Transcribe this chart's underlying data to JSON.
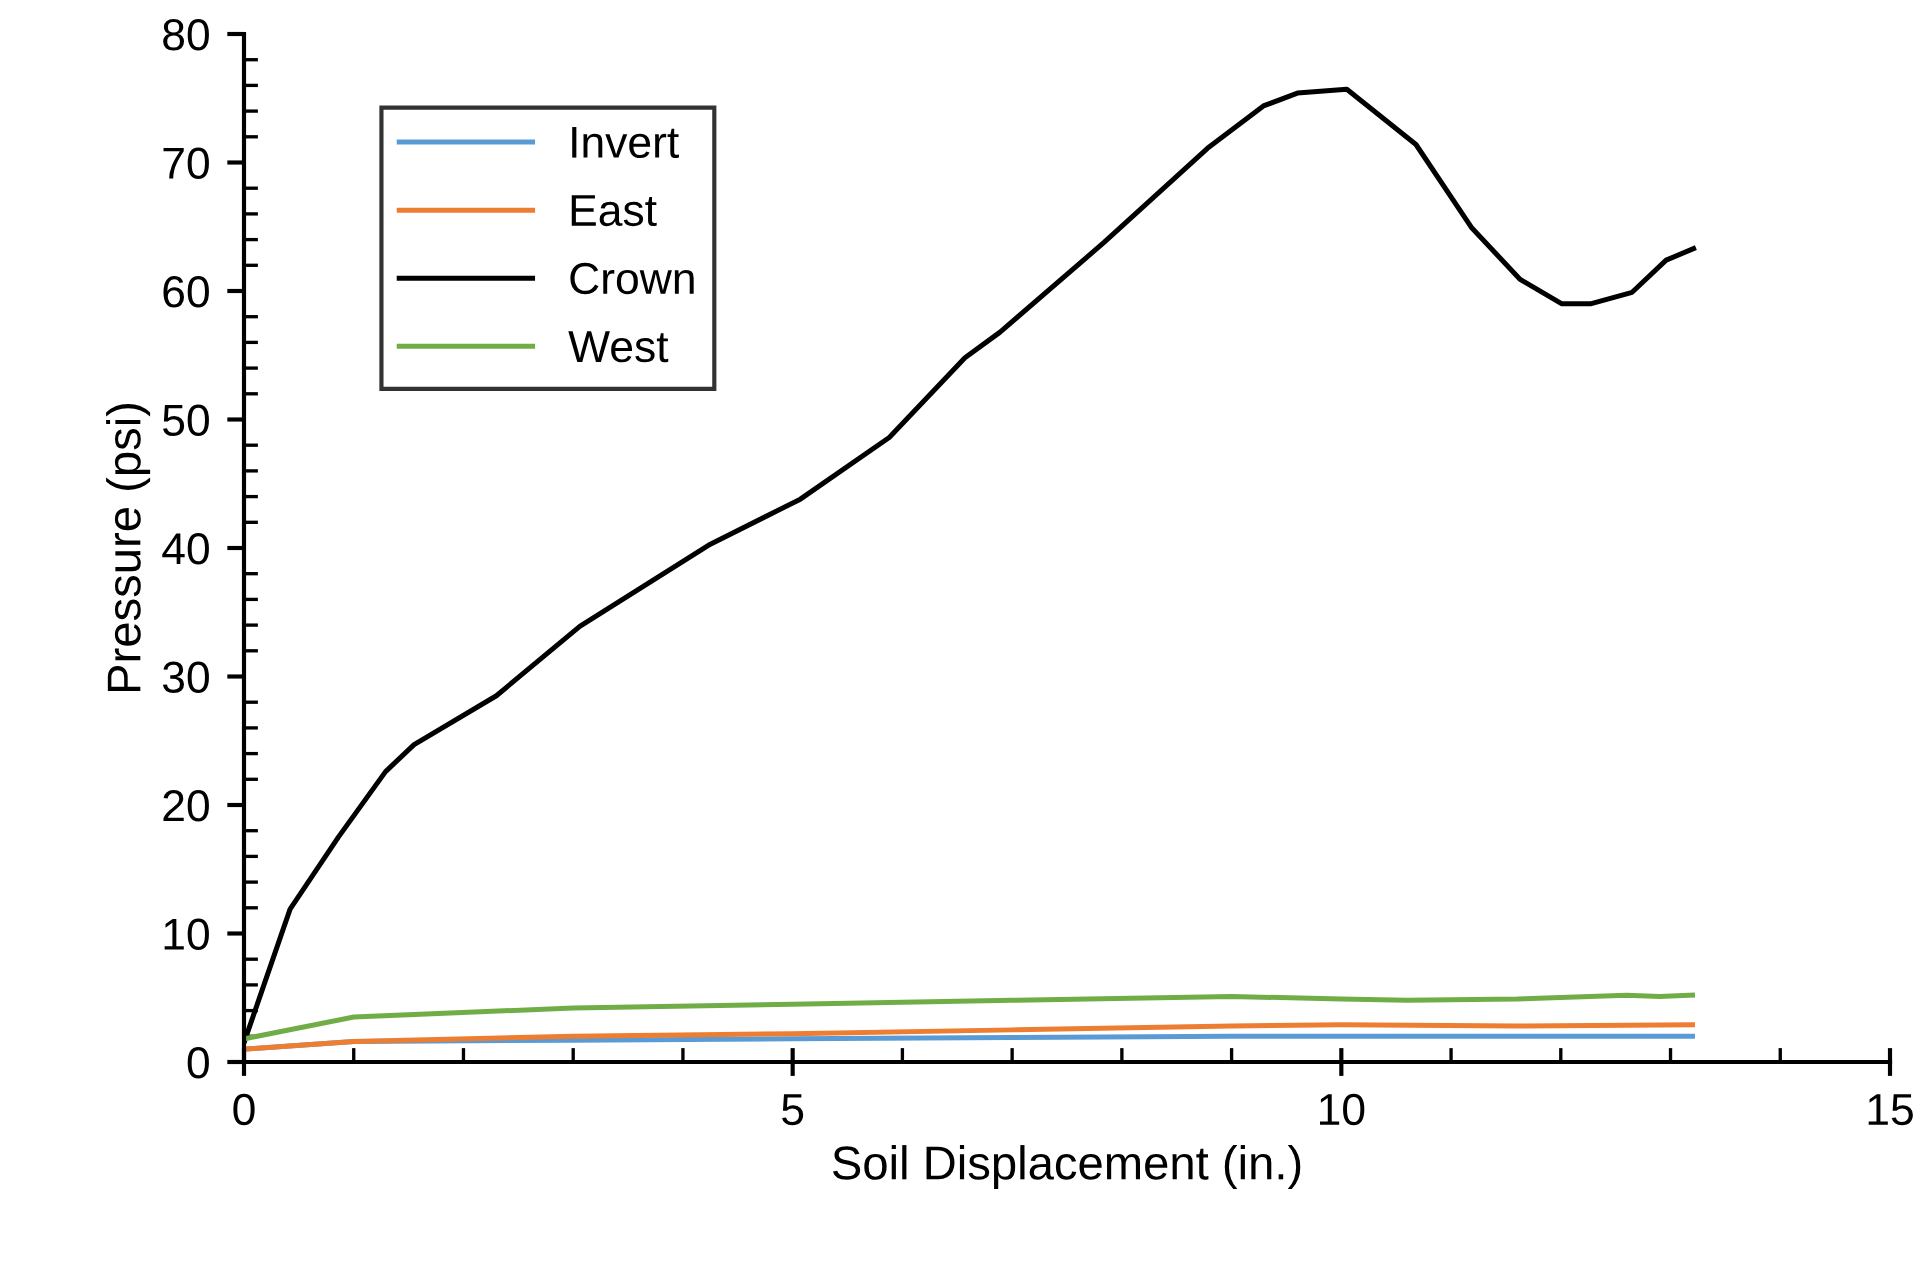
{
  "chart_data": {
    "type": "line",
    "xlabel": "Soil Displacement (in.)",
    "ylabel": "Pressure (psi)",
    "xlim": [
      0,
      15
    ],
    "ylim": [
      0,
      80
    ],
    "xticks": [
      0,
      5,
      10,
      15
    ],
    "yticks": [
      0,
      10,
      20,
      30,
      40,
      50,
      60,
      70,
      80
    ],
    "grid": false,
    "legend": "top left",
    "marker": "none",
    "line_style": "solid",
    "series": [
      {
        "name": "Invert",
        "color": "#5b9bd5",
        "x": [
          0,
          1,
          3,
          5,
          7,
          9,
          11,
          13.2
        ],
        "values": [
          1.0,
          1.6,
          1.7,
          1.8,
          1.9,
          2.0,
          2.0,
          2.0
        ]
      },
      {
        "name": "East",
        "color": "#ed7d31",
        "x": [
          0,
          1,
          3,
          5,
          7,
          9,
          10,
          11.6,
          13.2
        ],
        "values": [
          1.0,
          1.6,
          2.0,
          2.2,
          2.5,
          2.8,
          2.9,
          2.8,
          2.9
        ]
      },
      {
        "name": "Crown",
        "color": "#000000",
        "x": [
          0,
          0.42,
          0.86,
          1.29,
          1.55,
          2.3,
          3.06,
          4.25,
          5.07,
          5.88,
          6.57,
          6.89,
          7.84,
          8.78,
          9.29,
          9.6,
          10.05,
          10.68,
          11.19,
          11.63,
          12.01,
          12.27,
          12.65,
          12.96,
          13.21
        ],
        "values": [
          1.5,
          11.9,
          17.5,
          22.6,
          24.7,
          28.5,
          33.9,
          40.3,
          43.8,
          48.6,
          54.8,
          56.8,
          63.8,
          71.1,
          74.4,
          75.4,
          75.7,
          71.4,
          64.9,
          60.9,
          59.0,
          59.0,
          59.9,
          62.4,
          63.3
        ]
      },
      {
        "name": "West",
        "color": "#70ad47",
        "x": [
          0,
          1,
          3,
          5,
          7,
          9,
          10,
          10.6,
          11.6,
          12.6,
          12.9,
          13.2
        ],
        "values": [
          1.8,
          3.5,
          4.2,
          4.5,
          4.8,
          5.1,
          4.9,
          4.8,
          4.9,
          5.2,
          5.1,
          5.2
        ]
      }
    ]
  }
}
